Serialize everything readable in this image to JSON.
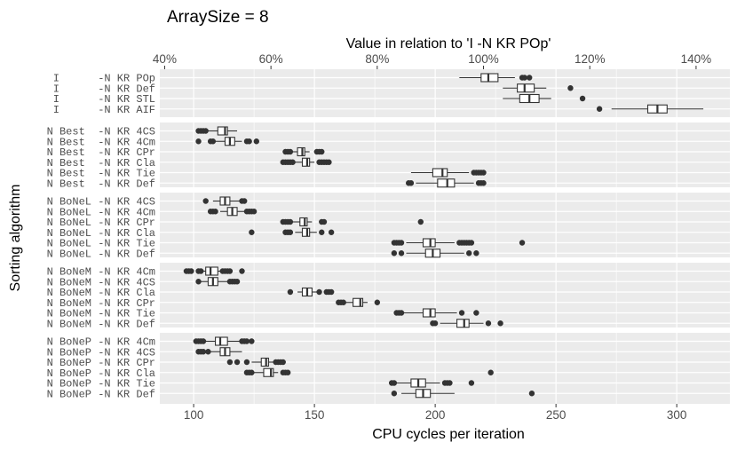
{
  "chart_data": {
    "type": "boxplot",
    "title": "ArraySize = 8",
    "xlabel": "CPU cycles per iteration",
    "secondary_xlabel": "Value in relation to 'I      -N KR POp'",
    "ylabel": "Sorting algorithm",
    "xlim": [
      86,
      322
    ],
    "x_ticks": [
      100,
      150,
      200,
      250,
      300
    ],
    "x_tick_labels": [
      "100",
      "150",
      "200",
      "250",
      "300"
    ],
    "reference_value": 220,
    "secondary_ticks": [
      0.4,
      0.6,
      0.8,
      1.0,
      1.2,
      1.4
    ],
    "secondary_tick_labels": [
      "40%",
      "60%",
      "80%",
      "100%",
      "120%",
      "140%"
    ],
    "panels": [
      {
        "rows": [
          {
            "label": "I      -N KR POp",
            "min": 210,
            "q1": 219,
            "median": 222,
            "q3": 226,
            "max": 233,
            "outliers": [
              236,
              237,
              239
            ]
          },
          {
            "label": "I      -N KR Def",
            "min": 228,
            "q1": 234,
            "median": 237,
            "q3": 241,
            "max": 246,
            "outliers": [
              256
            ]
          },
          {
            "label": "I      -N KR STL",
            "min": 228,
            "q1": 235,
            "median": 239,
            "q3": 243,
            "max": 248,
            "outliers": [
              261
            ]
          },
          {
            "label": "I      -N KR AIF",
            "min": 273,
            "q1": 288,
            "median": 292,
            "q3": 296,
            "max": 311,
            "outliers": [
              268
            ]
          }
        ]
      },
      {
        "rows": [
          {
            "label": "N Best  -N KR 4CS",
            "min": 106,
            "q1": 110,
            "median": 113,
            "q3": 114,
            "max": 118,
            "outliers": [
              102,
              103,
              104,
              105
            ]
          },
          {
            "label": "N Best  -N KR 4Cm",
            "min": 109,
            "q1": 113,
            "median": 115,
            "q3": 117,
            "max": 120,
            "outliers": [
              102,
              107,
              108,
              122,
              123,
              126
            ]
          },
          {
            "label": "N Best  -N KR CPr",
            "min": 141,
            "q1": 143,
            "median": 145,
            "q3": 146,
            "max": 148,
            "outliers": [
              138,
              139,
              140,
              151,
              152,
              153
            ]
          },
          {
            "label": "N Best  -N KR Cla",
            "min": 142,
            "q1": 145,
            "median": 147,
            "q3": 148,
            "max": 150,
            "outliers": [
              137,
              138,
              139,
              140,
              141,
              152,
              153,
              154,
              155,
              156
            ]
          },
          {
            "label": "N Best  -N KR Tie",
            "min": 190,
            "q1": 199,
            "median": 203,
            "q3": 205,
            "max": 214,
            "outliers": [
              216,
              217,
              218,
              219,
              220
            ]
          },
          {
            "label": "N Best  -N KR Def",
            "min": 192,
            "q1": 201,
            "median": 205,
            "q3": 208,
            "max": 216,
            "outliers": [
              189,
              190,
              218,
              219,
              220
            ]
          }
        ]
      },
      {
        "rows": [
          {
            "label": "N BoNeL -N KR 4CS",
            "min": 108,
            "q1": 111,
            "median": 113,
            "q3": 115,
            "max": 119,
            "outliers": [
              105,
              120,
              121
            ]
          },
          {
            "label": "N BoNeL -N KR 4Cm",
            "min": 111,
            "q1": 114,
            "median": 116,
            "q3": 118,
            "max": 121,
            "outliers": [
              107,
              108,
              109,
              122,
              123,
              124,
              125
            ]
          },
          {
            "label": "N BoNeL -N KR CPr",
            "min": 141,
            "q1": 144,
            "median": 146,
            "q3": 147,
            "max": 149,
            "outliers": [
              137,
              138,
              139,
              140,
              153,
              154,
              194
            ]
          },
          {
            "label": "N BoNeL -N KR Cla",
            "min": 142,
            "q1": 145,
            "median": 147,
            "q3": 148,
            "max": 151,
            "outliers": [
              124,
              138,
              139,
              140,
              153,
              157
            ]
          },
          {
            "label": "N BoNeL -N KR Tie",
            "min": 188,
            "q1": 195,
            "median": 198,
            "q3": 200,
            "max": 208,
            "outliers": [
              183,
              184,
              185,
              186,
              210,
              211,
              212,
              213,
              214,
              215,
              236
            ]
          },
          {
            "label": "N BoNeL -N KR Def",
            "min": 188,
            "q1": 196,
            "median": 199,
            "q3": 202,
            "max": 212,
            "outliers": [
              183,
              186,
              214,
              217
            ]
          }
        ]
      },
      {
        "rows": [
          {
            "label": "N BoNeM -N KR 4Cm",
            "min": 101,
            "q1": 105,
            "median": 107,
            "q3": 110,
            "max": 114,
            "outliers": [
              97,
              98,
              99,
              102,
              103,
              112,
              113,
              114,
              115,
              120
            ]
          },
          {
            "label": "N BoNeM -N KR 4CS",
            "min": 103,
            "q1": 106,
            "median": 108,
            "q3": 110,
            "max": 114,
            "outliers": [
              102,
              115,
              116,
              117,
              118
            ]
          },
          {
            "label": "N BoNeM -N KR Cla",
            "min": 143,
            "q1": 145,
            "median": 147,
            "q3": 149,
            "max": 151,
            "outliers": [
              140,
              152,
              155,
              156,
              157
            ]
          },
          {
            "label": "N BoNeM -N KR CPr",
            "min": 163,
            "q1": 166,
            "median": 169,
            "q3": 170,
            "max": 172,
            "outliers": [
              160,
              161,
              162,
              176
            ]
          },
          {
            "label": "N BoNeM -N KR Tie",
            "min": 187,
            "q1": 195,
            "median": 198,
            "q3": 200,
            "max": 209,
            "outliers": [
              184,
              185,
              186,
              211,
              217
            ]
          },
          {
            "label": "N BoNeM -N KR Def",
            "min": 202,
            "q1": 209,
            "median": 212,
            "q3": 214,
            "max": 220,
            "outliers": [
              199,
              200,
              222,
              227
            ]
          }
        ]
      },
      {
        "rows": [
          {
            "label": "N BoNeP -N KR 4Cm",
            "min": 105,
            "q1": 109,
            "median": 111,
            "q3": 114,
            "max": 119,
            "outliers": [
              101,
              102,
              103,
              104,
              120,
              121,
              122,
              124
            ]
          },
          {
            "label": "N BoNeP -N KR 4CS",
            "min": 107,
            "q1": 111,
            "median": 113,
            "q3": 115,
            "max": 120,
            "outliers": [
              102,
              103,
              104,
              106
            ]
          },
          {
            "label": "N BoNeP -N KR CPr",
            "min": 124,
            "q1": 128,
            "median": 130,
            "q3": 131,
            "max": 133,
            "outliers": [
              115,
              118,
              122,
              134,
              135,
              136,
              137
            ]
          },
          {
            "label": "N BoNeP -N KR Cla",
            "min": 125,
            "q1": 129,
            "median": 132,
            "q3": 133,
            "max": 135,
            "outliers": [
              122,
              123,
              124,
              137,
              138,
              139,
              223
            ]
          },
          {
            "label": "N BoNeP -N KR Tie",
            "min": 184,
            "q1": 190,
            "median": 193,
            "q3": 196,
            "max": 202,
            "outliers": [
              182,
              183,
              204,
              205,
              206,
              215
            ]
          },
          {
            "label": "N BoNeP -N KR Def",
            "min": 186,
            "q1": 192,
            "median": 195,
            "q3": 198,
            "max": 208,
            "outliers": [
              183,
              240
            ]
          }
        ]
      }
    ]
  }
}
